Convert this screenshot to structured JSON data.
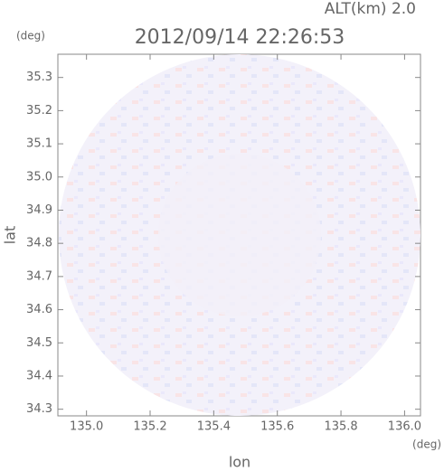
{
  "chart_data": {
    "type": "radar-map",
    "title": "2012/09/14 22:26:53",
    "annotation": "ALT(km) 2.0",
    "y_unit": "(deg)",
    "x_unit": "(deg)",
    "xlabel": "lon",
    "ylabel": "lat",
    "xlim": [
      134.91,
      136.05
    ],
    "ylim": [
      34.28,
      35.37
    ],
    "xticks": [
      {
        "value": 135.0,
        "label": "135.0"
      },
      135.2,
      135.4,
      135.6,
      135.8,
      {
        "value": 136.0,
        "label": "136.0"
      }
    ],
    "yticks": [
      34.3,
      34.4,
      34.5,
      34.6,
      34.7,
      34.8,
      34.9,
      {
        "value": 35.0,
        "label": "35.0"
      },
      35.1,
      35.2,
      35.3
    ]
  }
}
